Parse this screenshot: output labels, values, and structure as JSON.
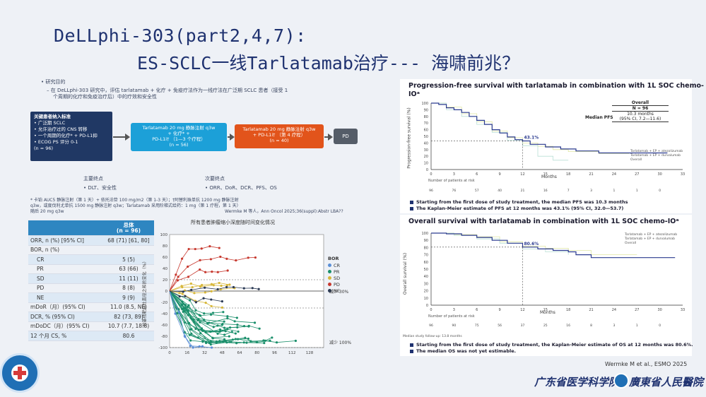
{
  "title": {
    "line1": "DeLLphi-303(part2,4,7):",
    "line2": "ES-SCLC一线Tarlatamab治疗--- 海啸前兆？"
  },
  "study": {
    "objective_heading": "• 研究目的",
    "objective_text_1": "– 在 DeLLphi-303 研究中，评估 tarlatamab + 化疗 + 免疫疗法作为一线疗法在广泛期 SCLC 患者（接受 1",
    "objective_text_2": "个周期的化疗和免疫治疗后）中的疗效和安全性",
    "criteria": [
      "关键患者纳入标准",
      "• 广泛期 SCLC",
      "• 允许治疗过的 CNS 转移",
      "• 一个周期的化疗* + PD-L1抑",
      "• ECOG PS 评分 0-1",
      "(n = 96)"
    ],
    "flow1": [
      "Tarlatamab 20 mg 静脉注射 q3w",
      "+ 化疗* +",
      "PD-L1i† （1—3 个疗程）",
      "(n = 56)"
    ],
    "flow2": [
      "Tarlatamab 20 mg 静脉注射 q3w",
      "+ PD-L1i† （第 4 疗程）",
      "(n = 40)"
    ],
    "flow3": "PD",
    "primary_heading": "主要终点",
    "primary_items": "• DLT、安全性",
    "secondary_heading": "次要终点",
    "secondary_items": "• ORR、DoR、DCR、PFS、OS",
    "footnote_1": "* 卡铂 AUC5 静脉注射（第 1 天）+ 依托泊苷 100 mg/m2（第 1-3 天）；†阿替利珠单抗 1200 mg 静脉注射",
    "footnote_2": "q3w，或度伐利尤单抗 1500 mg 静脉注射 q3w；Tarlatamab 采用阶梯式给药：1 mg（第 1 疗程，第 1 天）",
    "footnote_3": "随后 20 mg q3w",
    "source": "Wermke M 等人，Ann Oncol 2025;36(suppl):Abstr LBA??"
  },
  "table": {
    "header": "总体\n(n = 96)",
    "rows": [
      {
        "label": "ORR, n (%) [95% CI]",
        "value": "68 (71) [61, 80]"
      },
      {
        "label": "BOR, n (%)",
        "value": ""
      },
      {
        "label": "CR",
        "value": "5 (5)"
      },
      {
        "label": "PR",
        "value": "63 (66)"
      },
      {
        "label": "SD",
        "value": "11 (11)"
      },
      {
        "label": "PD",
        "value": "8 (8)"
      },
      {
        "label": "NE",
        "value": "9 (9)"
      },
      {
        "label": "mDoR（月）(95% CI)",
        "value": "11.0 (8.5, NE)"
      },
      {
        "label": "DCR, % (95% CI)",
        "value": "82 (73, 89)"
      },
      {
        "label": "mDoDC（月）(95% CI)",
        "value": "10.7 (7.7, 18.8)"
      },
      {
        "label": "12 个月 CS, %",
        "value": "80.6"
      }
    ]
  },
  "spider": {
    "title": "所有患者肿瘤缩小深度随时间变化情况",
    "y_label": "较基线靶病灶直径之和的变化（%）",
    "y_ticks": [
      "100",
      "80",
      "60",
      "40",
      "20",
      "0",
      "-20",
      "-40",
      "-60",
      "-80",
      "-100"
    ],
    "x_ticks": [
      "0",
      "16",
      "32",
      "48",
      "64",
      "80",
      "96",
      "112",
      "128"
    ],
    "legend_title": "BOR",
    "legend": [
      {
        "label": "CR",
        "color": "#5b8fd6"
      },
      {
        "label": "PR",
        "color": "#1a8f6b"
      },
      {
        "label": "SD",
        "color": "#d7b73a"
      },
      {
        "label": "PD",
        "color": "#c7392f"
      },
      {
        "label": "NE",
        "color": "#2b3a55"
      }
    ],
    "ref_label_1": "减少 30%",
    "ref_label_2": "减少 100%"
  },
  "pfs": {
    "title": "Progression-free survival with tarlatamab in combination with 1L SOC chemo-",
    "title_2": "IOᵃ",
    "y_label": "Progression-free survival (%)",
    "y_ticks": [
      "100",
      "90",
      "80",
      "70",
      "60",
      "50",
      "40",
      "30",
      "20",
      "10",
      "0"
    ],
    "x_ticks": [
      "0",
      "3",
      "6",
      "9",
      "12",
      "15",
      "18",
      "21",
      "24",
      "27",
      "30",
      "33"
    ],
    "x_label": "Months",
    "annotation": "43.1%",
    "overall_header": "Overall",
    "n": "N = 96",
    "median_label": "Median PFS",
    "median_value": "10.3 months",
    "median_ci": "(95% CI, 7.2—11.6)",
    "legend": [
      "Tarlatamab + EP + atezolizumab",
      "Tarlatamab + EP + durvalumab",
      "Overall"
    ],
    "at_risk_label": "Number of patients at risk",
    "at_risk": [
      "96",
      "76",
      "57",
      "40",
      "21",
      "16",
      "7",
      "3",
      "1",
      "1",
      "0"
    ],
    "bullet_1": "Starting from the first dose of study treatment, the median PFS was 10.3 months",
    "bullet_2": "The Kaplan-Meier estimate of PFS at 12 months was 43.1% (95% CI, 32.0—53.7)"
  },
  "os": {
    "title": "Overall survival with tarlatamab in combination with 1L SOC chemo-IOᵃ",
    "y_label": "Overall survival (%)",
    "y_ticks": [
      "100",
      "90",
      "80",
      "70",
      "60",
      "50",
      "40",
      "30",
      "20",
      "10",
      "0"
    ],
    "x_ticks": [
      "0",
      "3",
      "6",
      "9",
      "12",
      "15",
      "18",
      "21",
      "24",
      "27",
      "30",
      "33"
    ],
    "x_label": "Months",
    "annotation": "80.6%",
    "legend": [
      "Tarlatamab + EP + atezolizumab",
      "Tarlatamab + EP + durvalumab",
      "Overall"
    ],
    "at_risk_label": "Number of patients at risk",
    "at_risk": [
      "96",
      "90",
      "75",
      "56",
      "37",
      "25",
      "16",
      "8",
      "3",
      "1",
      "0"
    ],
    "followup": "Median study follow-up: 13.8 months",
    "bullet_1": "Starting from the first dose of study treatment, the Kaplan-Meier estimate of OS at 12 months was 80.6%.",
    "bullet_2": "The median OS was not yet estimable."
  },
  "citation": "Wermke M et al., ESMO 2025",
  "logos": {
    "text_1": "广东省医学科学院",
    "text_2": "廣東省人民醫院"
  },
  "colors": {
    "title": "#1f3270",
    "accent_blue": "#2e86c1",
    "flow_cyan": "#1ca0d8",
    "flow_orange": "#e2541b",
    "navy": "#203864"
  }
}
